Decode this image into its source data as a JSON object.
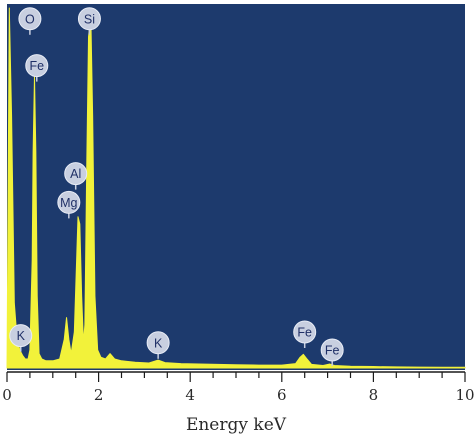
{
  "chart_data": {
    "type": "line",
    "title": "",
    "xlabel": "Energy keV",
    "ylabel": "",
    "xlim": [
      0,
      10
    ],
    "ylim": [
      0,
      100
    ],
    "x_ticks": [
      "0",
      "2",
      "4",
      "6",
      "8",
      "10"
    ],
    "grid": false,
    "colors": {
      "background": "#1d3a6d",
      "spectrum": "#f2f23a",
      "label_badge": "#c8cfe0"
    },
    "series": [
      {
        "values": [
          [
            0.0,
            0
          ],
          [
            0.05,
            100
          ],
          [
            0.1,
            70
          ],
          [
            0.16,
            18
          ],
          [
            0.22,
            8
          ],
          [
            0.28,
            5
          ],
          [
            0.34,
            3.5
          ],
          [
            0.4,
            2.5
          ],
          [
            0.46,
            2.5
          ],
          [
            0.5,
            5
          ],
          [
            0.55,
            30
          ],
          [
            0.57,
            60
          ],
          [
            0.6,
            81
          ],
          [
            0.63,
            60
          ],
          [
            0.66,
            20
          ],
          [
            0.7,
            4
          ],
          [
            0.76,
            2.5
          ],
          [
            0.85,
            2
          ],
          [
            1.0,
            2
          ],
          [
            1.15,
            2.5
          ],
          [
            1.25,
            8
          ],
          [
            1.3,
            14
          ],
          [
            1.35,
            8
          ],
          [
            1.4,
            4
          ],
          [
            1.47,
            10
          ],
          [
            1.52,
            30
          ],
          [
            1.55,
            42
          ],
          [
            1.59,
            40
          ],
          [
            1.63,
            20
          ],
          [
            1.67,
            7
          ],
          [
            1.7,
            12
          ],
          [
            1.74,
            55
          ],
          [
            1.78,
            92
          ],
          [
            1.83,
            98
          ],
          [
            1.87,
            70
          ],
          [
            1.92,
            20
          ],
          [
            1.98,
            5
          ],
          [
            2.05,
            3
          ],
          [
            2.15,
            2.5
          ],
          [
            2.25,
            4
          ],
          [
            2.35,
            2.5
          ],
          [
            2.5,
            2
          ],
          [
            2.8,
            1.6
          ],
          [
            3.1,
            1.4
          ],
          [
            3.3,
            2.2
          ],
          [
            3.45,
            1.5
          ],
          [
            3.8,
            1.2
          ],
          [
            4.2,
            1.1
          ],
          [
            4.6,
            1.0
          ],
          [
            5.0,
            0.9
          ],
          [
            5.5,
            0.8
          ],
          [
            6.0,
            0.8
          ],
          [
            6.3,
            1.2
          ],
          [
            6.4,
            3
          ],
          [
            6.47,
            3.8
          ],
          [
            6.55,
            2.5
          ],
          [
            6.65,
            1
          ],
          [
            6.9,
            0.7
          ],
          [
            7.05,
            1.1
          ],
          [
            7.15,
            0.7
          ],
          [
            7.5,
            0.5
          ],
          [
            8.0,
            0.4
          ],
          [
            8.5,
            0.3
          ],
          [
            9.0,
            0.25
          ],
          [
            9.5,
            0.2
          ],
          [
            10.0,
            0.2
          ]
        ]
      }
    ],
    "annotations": [
      {
        "text": "O",
        "x": 0.5,
        "y": 97
      },
      {
        "text": "Si",
        "x": 1.8,
        "y": 97
      },
      {
        "text": "Fe",
        "x": 0.65,
        "y": 84
      },
      {
        "text": "Al",
        "x": 1.5,
        "y": 54
      },
      {
        "text": "Mg",
        "x": 1.35,
        "y": 46
      },
      {
        "text": "K",
        "x": 0.3,
        "y": 9
      },
      {
        "text": "K",
        "x": 3.3,
        "y": 7
      },
      {
        "text": "Fe",
        "x": 6.5,
        "y": 10
      },
      {
        "text": "Fe",
        "x": 7.1,
        "y": 5
      }
    ]
  }
}
